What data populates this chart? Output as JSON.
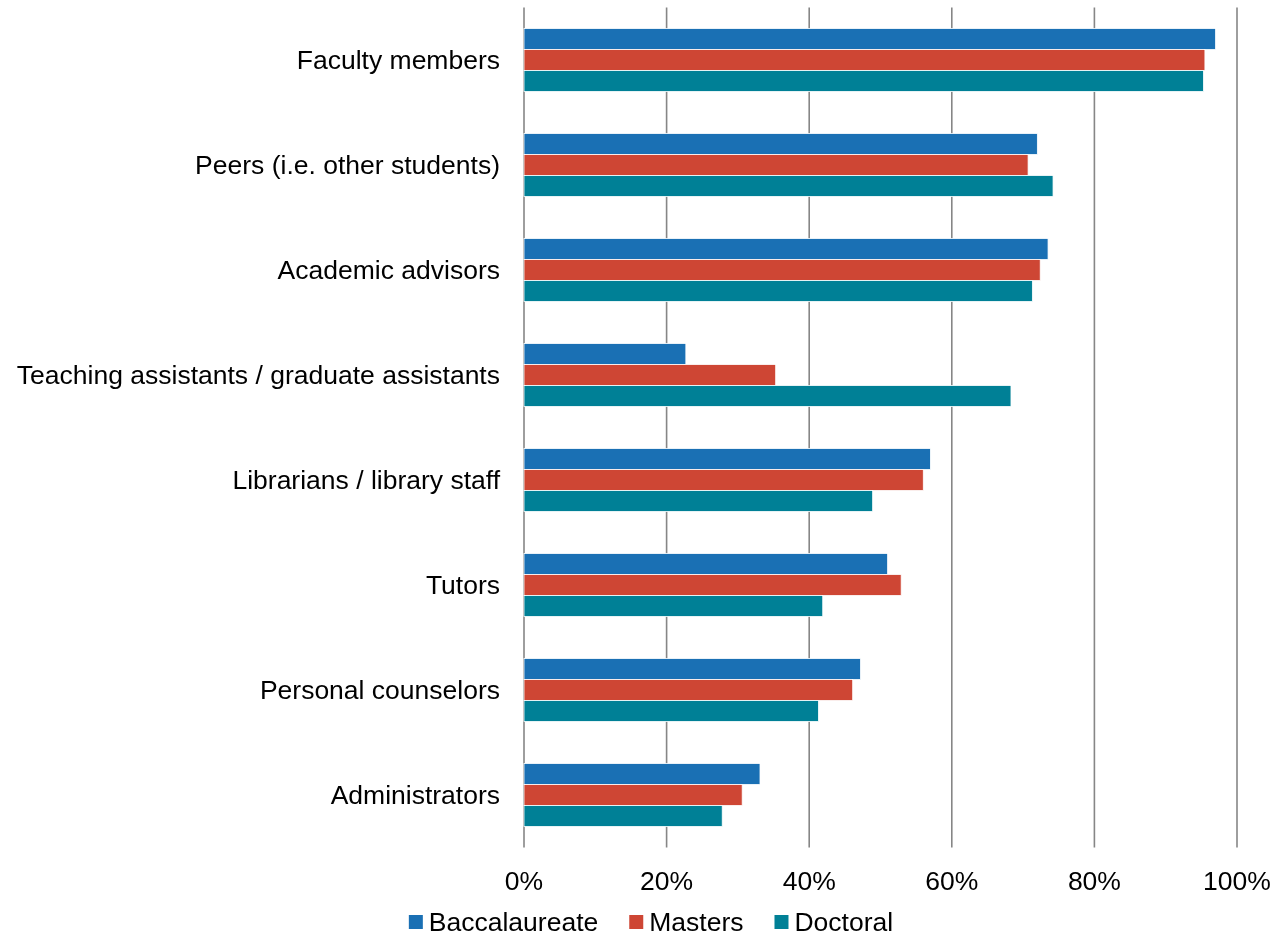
{
  "chart_data": {
    "type": "bar",
    "orientation": "horizontal",
    "categories": [
      "Faculty members",
      "Peers (i.e. other students)",
      "Academic advisors",
      "Teaching assistants / graduate assistants",
      "Librarians / library staff",
      "Tutors",
      "Personal counselors",
      "Administrators"
    ],
    "series": [
      {
        "name": "Baccalaureate",
        "color": "#1a70b4",
        "values": [
          97,
          72,
          73.5,
          22.7,
          57,
          51,
          47.2,
          33.1
        ]
      },
      {
        "name": "Masters",
        "color": "#ce4634",
        "values": [
          95.5,
          70.7,
          72.4,
          35.3,
          56,
          52.9,
          46.1,
          30.6
        ]
      },
      {
        "name": "Doctoral",
        "color": "#008096",
        "values": [
          95.3,
          74.2,
          71.3,
          68.3,
          48.9,
          41.9,
          41.3,
          27.8
        ]
      }
    ],
    "xlim": [
      0,
      100
    ],
    "xticks": [
      {
        "value": 0,
        "label": "0%"
      },
      {
        "value": 20,
        "label": "20%"
      },
      {
        "value": 40,
        "label": "40%"
      },
      {
        "value": 60,
        "label": "60%"
      },
      {
        "value": 80,
        "label": "80%"
      },
      {
        "value": 100,
        "label": "100%"
      }
    ],
    "grid": "x",
    "legend": "bottom"
  }
}
